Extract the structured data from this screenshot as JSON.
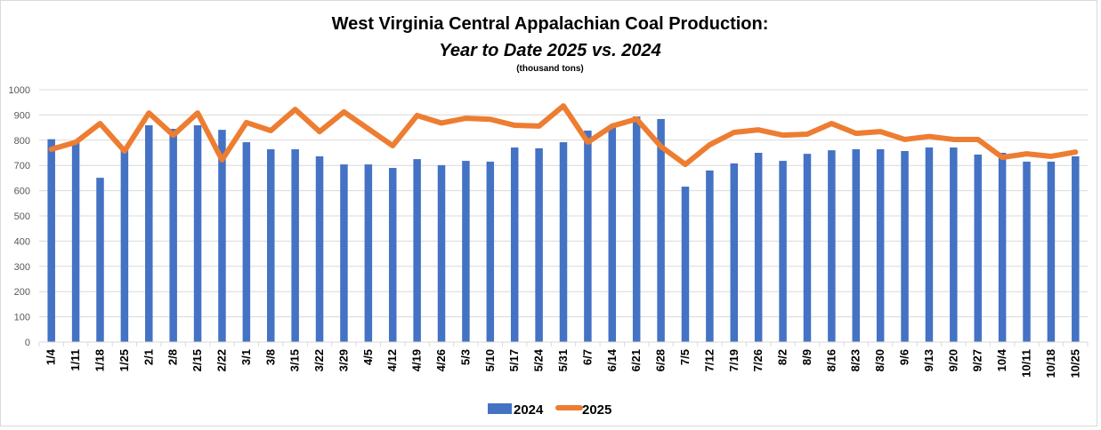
{
  "chart_data": {
    "type": "bar+line",
    "title": "West Virginia Central Appalachian Coal Production:",
    "subtitle": "Year to Date 2025 vs. 2024",
    "units_note": "(thousand tons)",
    "xlabel": "",
    "ylabel": "",
    "ylim": [
      0,
      1000
    ],
    "yticks": [
      0,
      100,
      200,
      300,
      400,
      500,
      600,
      700,
      800,
      900,
      1000
    ],
    "grid": true,
    "legend_position": "bottom",
    "categories": [
      "1/4",
      "1/11",
      "1/18",
      "1/25",
      "2/1",
      "2/8",
      "2/15",
      "2/22",
      "3/1",
      "3/8",
      "3/15",
      "3/22",
      "3/29",
      "4/5",
      "4/12",
      "4/19",
      "4/26",
      "5/3",
      "5/10",
      "5/17",
      "5/24",
      "5/31",
      "6/7",
      "6/14",
      "6/21",
      "6/28",
      "7/5",
      "7/12",
      "7/19",
      "7/26",
      "8/2",
      "8/9",
      "8/16",
      "8/23",
      "8/30",
      "9/6",
      "9/13",
      "9/20",
      "9/27",
      "10/4",
      "10/11",
      "10/18",
      "10/25"
    ],
    "series": [
      {
        "name": "2024",
        "type": "bar",
        "color": "#4472c4",
        "values": [
          804,
          792,
          651,
          764,
          859,
          845,
          859,
          841,
          792,
          764,
          764,
          736,
          704,
          704,
          690,
          725,
          701,
          718,
          715,
          771,
          768,
          792,
          838,
          859,
          894,
          884,
          616,
          680,
          708,
          750,
          718,
          746,
          760,
          764,
          764,
          757,
          771,
          771,
          743,
          750,
          715,
          715,
          736
        ]
      },
      {
        "name": "2025",
        "type": "line",
        "color": "#ed7d31",
        "values": [
          764,
          792,
          866,
          757,
          908,
          820,
          908,
          722,
          870,
          838,
          922,
          834,
          912,
          845,
          778,
          898,
          868,
          887,
          883,
          859,
          856,
          936,
          792,
          856,
          884,
          775,
          704,
          782,
          831,
          841,
          820,
          824,
          866,
          827,
          834,
          803,
          815,
          803,
          803,
          732,
          746,
          736,
          753
        ]
      }
    ]
  },
  "colors": {
    "gridline": "#d9d9d9",
    "axis_text": "#595959",
    "bar": "#4472c4",
    "line": "#ed7d31"
  }
}
